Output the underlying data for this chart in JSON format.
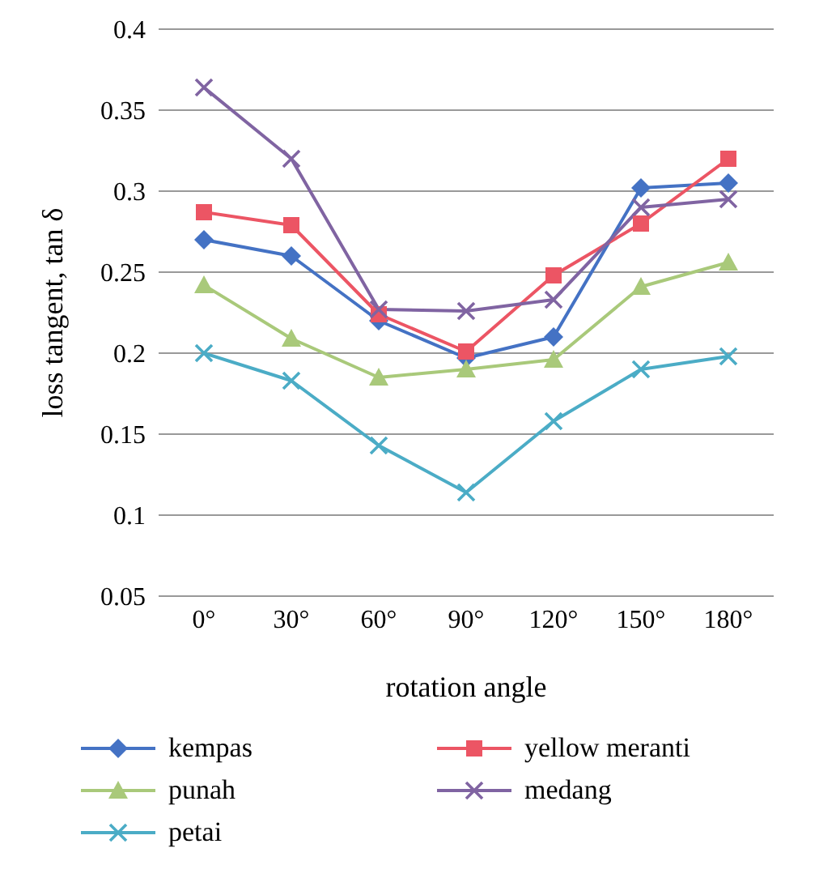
{
  "chart_data": {
    "type": "line",
    "xlabel": "rotation angle",
    "ylabel": "loss tangent, tan δ",
    "categories": [
      "0°",
      "30°",
      "60°",
      "90°",
      "120°",
      "150°",
      "180°"
    ],
    "series": [
      {
        "name": "kempas",
        "color": "#4472c4",
        "marker": "diamond",
        "values": [
          0.27,
          0.26,
          0.22,
          0.197,
          0.21,
          0.302,
          0.305
        ]
      },
      {
        "name": "yellow meranti",
        "color": "#ec5564",
        "marker": "square",
        "values": [
          0.287,
          0.279,
          0.224,
          0.201,
          0.248,
          0.28,
          0.32
        ]
      },
      {
        "name": "punah",
        "color": "#a9c97a",
        "marker": "triangle",
        "values": [
          0.242,
          0.209,
          0.185,
          0.19,
          0.196,
          0.241,
          0.256
        ]
      },
      {
        "name": "medang",
        "color": "#8064a2",
        "marker": "cross",
        "values": [
          0.364,
          0.32,
          0.227,
          0.226,
          0.233,
          0.29,
          0.295
        ]
      },
      {
        "name": "petai",
        "color": "#4bacc6",
        "marker": "cross",
        "values": [
          0.2,
          0.183,
          0.143,
          0.114,
          0.158,
          0.19,
          0.198
        ]
      }
    ],
    "ylim": [
      0.05,
      0.4
    ],
    "yticks": [
      0.05,
      0.1,
      0.15,
      0.2,
      0.25,
      0.3,
      0.35,
      0.4
    ],
    "grid": "y",
    "legend": "bottom"
  }
}
